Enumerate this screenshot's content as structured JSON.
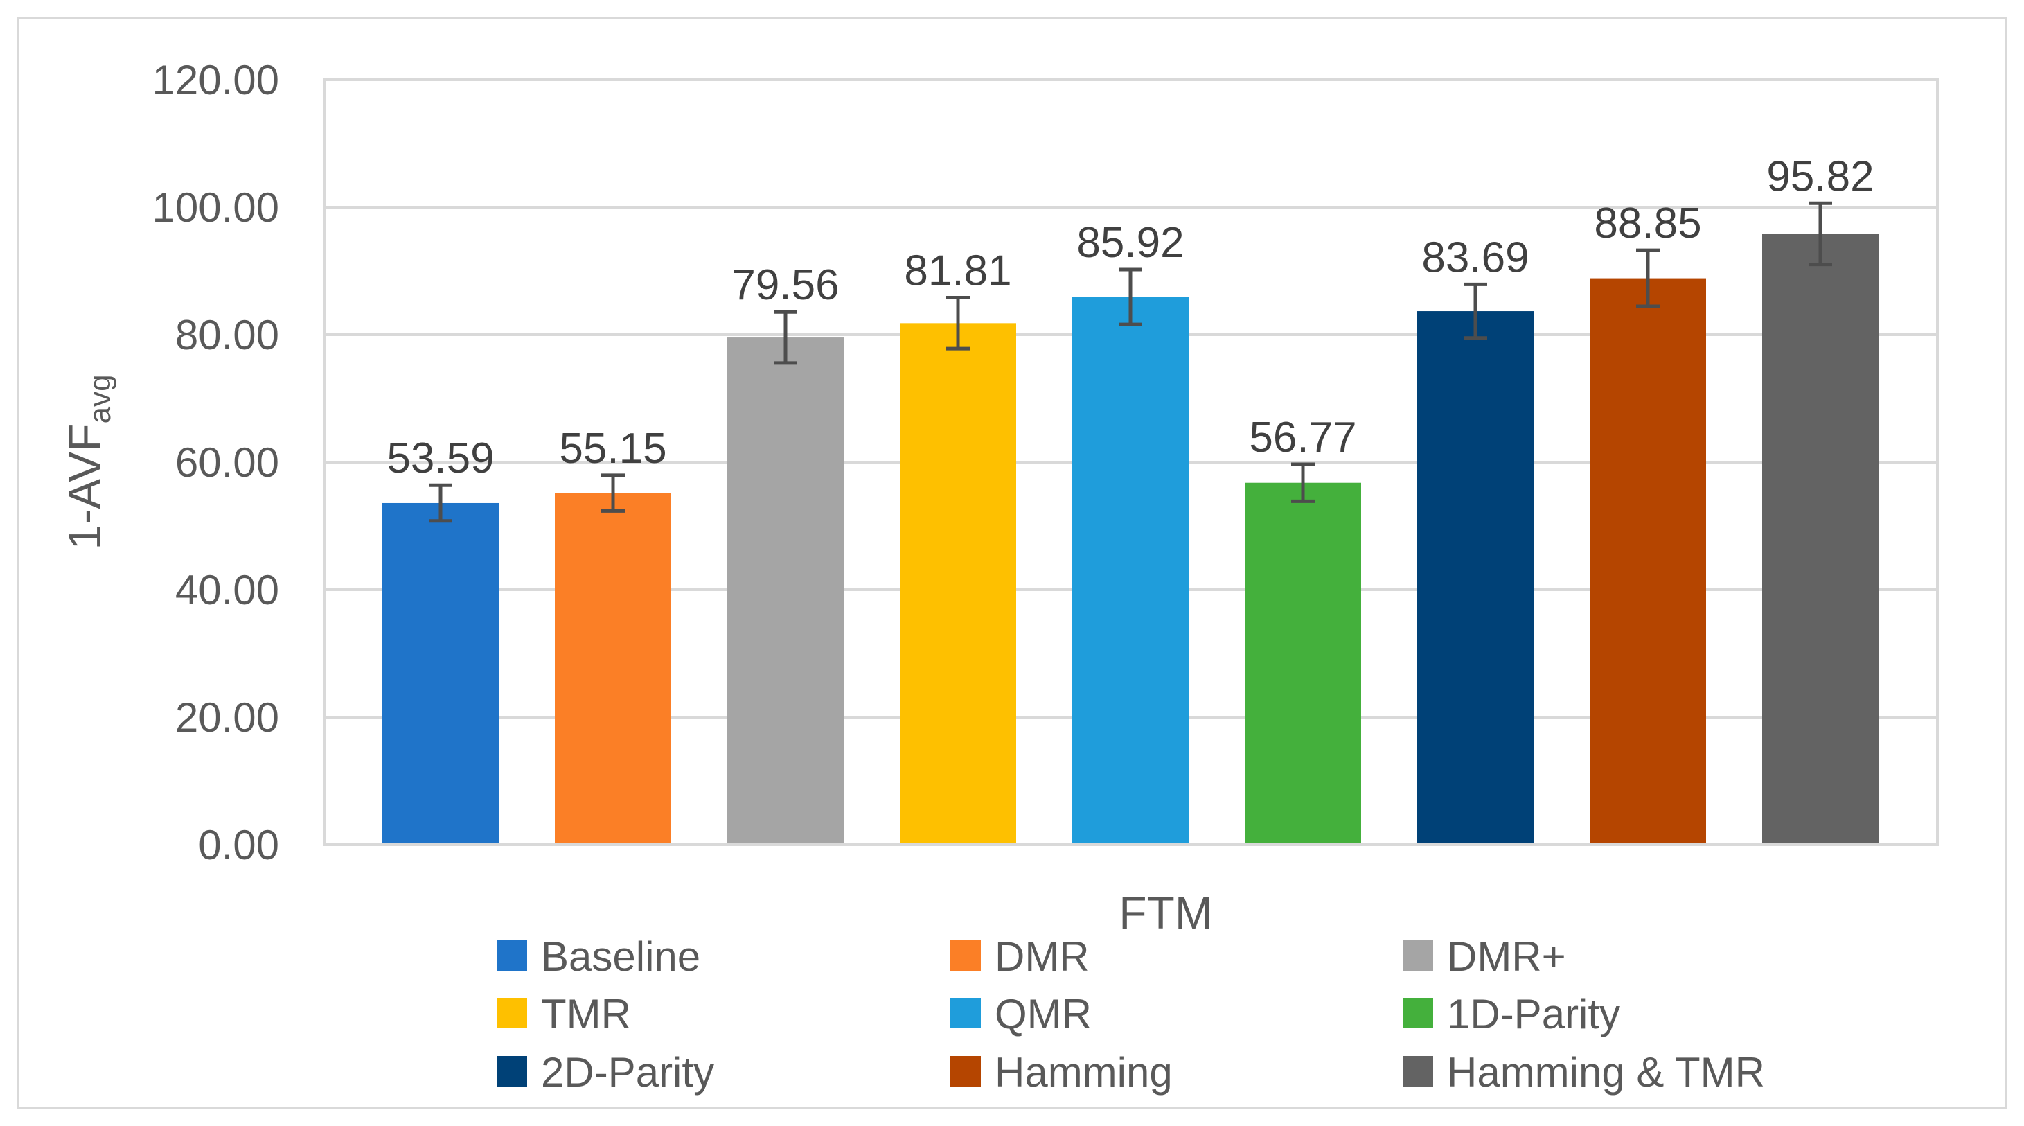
{
  "chart_data": {
    "type": "bar",
    "title": "",
    "xlabel": "FTM",
    "ylabel": "1-AVF",
    "ylabel_subscript": "avg",
    "ylim": [
      0,
      120
    ],
    "yticks": [
      0,
      20,
      40,
      60,
      80,
      100,
      120
    ],
    "ytick_labels": [
      "0.00",
      "20.00",
      "40.00",
      "60.00",
      "80.00",
      "100.00",
      "120.00"
    ],
    "grid": true,
    "legend_position": "bottom",
    "series": [
      {
        "name": "Baseline",
        "value": 53.59,
        "label": "53.59",
        "error": 2.8,
        "color": "#1f74c9"
      },
      {
        "name": "DMR",
        "value": 55.15,
        "label": "55.15",
        "error": 2.8,
        "color": "#fb7f26"
      },
      {
        "name": "DMR+",
        "value": 79.56,
        "label": "79.56",
        "error": 4.0,
        "color": "#a5a5a5"
      },
      {
        "name": "TMR",
        "value": 81.81,
        "label": "81.81",
        "error": 4.0,
        "color": "#fec000"
      },
      {
        "name": "QMR",
        "value": 85.92,
        "label": "85.92",
        "error": 4.3,
        "color": "#1f9ddb"
      },
      {
        "name": "1D-Parity",
        "value": 56.77,
        "label": "56.77",
        "error": 2.9,
        "color": "#44b03c"
      },
      {
        "name": "2D-Parity",
        "value": 83.69,
        "label": "83.69",
        "error": 4.2,
        "color": "#004177"
      },
      {
        "name": "Hamming",
        "value": 88.85,
        "label": "88.85",
        "error": 4.4,
        "color": "#b54500"
      },
      {
        "name": "Hamming & TMR",
        "value": 95.82,
        "label": "95.82",
        "error": 4.8,
        "color": "#636363"
      }
    ]
  }
}
